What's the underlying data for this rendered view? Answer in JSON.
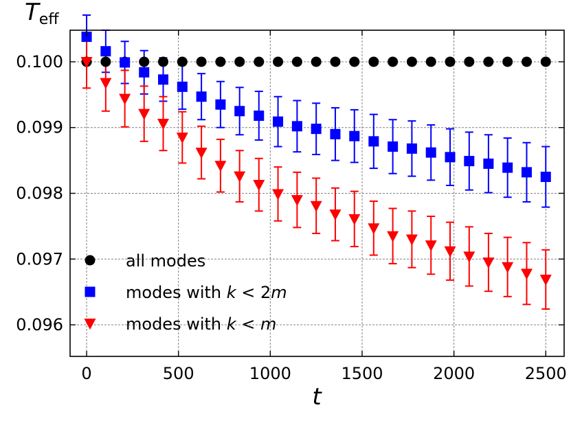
{
  "chart_data": {
    "type": "scatter",
    "title": "",
    "ylabel": {
      "main": "T",
      "sub": "eff"
    },
    "xlabel": "t",
    "xlim": [
      -90,
      2600
    ],
    "ylim": [
      0.09552,
      0.10048
    ],
    "xticks": [
      0,
      500,
      1000,
      1500,
      2000,
      2500
    ],
    "xtick_labels": [
      "0",
      "500",
      "1000",
      "1500",
      "2000",
      "2500"
    ],
    "yticks": [
      0.096,
      0.097,
      0.098,
      0.099,
      0.1
    ],
    "ytick_labels": [
      "0.096",
      "0.097",
      "0.098",
      "0.099",
      "0.100"
    ],
    "grid": true,
    "x": [
      0,
      104,
      208,
      313,
      417,
      521,
      625,
      729,
      833,
      938,
      1042,
      1146,
      1250,
      1354,
      1458,
      1563,
      1667,
      1771,
      1875,
      1979,
      2083,
      2188,
      2292,
      2396,
      2500
    ],
    "series": [
      {
        "name": "all modes",
        "marker": "circle",
        "color": "#000000",
        "values": [
          0.1,
          0.1,
          0.1,
          0.1,
          0.1,
          0.1,
          0.1,
          0.1,
          0.1,
          0.1,
          0.1,
          0.1,
          0.1,
          0.1,
          0.1,
          0.1,
          0.1,
          0.1,
          0.1,
          0.1,
          0.1,
          0.1,
          0.1,
          0.1,
          0.1
        ],
        "errors": null
      },
      {
        "name": "modes with k < 2m",
        "marker": "square",
        "color": "#0000ff",
        "values": [
          0.10038,
          0.10016,
          0.09999,
          0.09984,
          0.09973,
          0.09962,
          0.09947,
          0.09935,
          0.09925,
          0.09918,
          0.09909,
          0.09902,
          0.09898,
          0.0989,
          0.09887,
          0.09879,
          0.09871,
          0.09868,
          0.09862,
          0.09855,
          0.09849,
          0.09845,
          0.09839,
          0.09832,
          0.09825
        ],
        "errors": [
          0.00033,
          0.00032,
          0.00032,
          0.00033,
          0.00033,
          0.00034,
          0.00035,
          0.00035,
          0.00036,
          0.00037,
          0.00038,
          0.00039,
          0.00039,
          0.0004,
          0.0004,
          0.00041,
          0.00041,
          0.00042,
          0.00042,
          0.00043,
          0.00044,
          0.00044,
          0.00045,
          0.00045,
          0.00046
        ]
      },
      {
        "name": "modes with k < m",
        "marker": "triangle-down",
        "color": "#ff0000",
        "values": [
          0.1,
          0.09968,
          0.09944,
          0.09921,
          0.09906,
          0.09885,
          0.09862,
          0.09842,
          0.09826,
          0.09813,
          0.09799,
          0.0979,
          0.09781,
          0.09768,
          0.09761,
          0.09747,
          0.09735,
          0.0973,
          0.09721,
          0.09712,
          0.09704,
          0.09695,
          0.09688,
          0.09678,
          0.09669
        ],
        "errors": [
          0.0004,
          0.00043,
          0.00043,
          0.00042,
          0.00041,
          0.00039,
          0.0004,
          0.0004,
          0.00039,
          0.0004,
          0.00041,
          0.00042,
          0.00042,
          0.0004,
          0.00042,
          0.00041,
          0.00042,
          0.00043,
          0.00044,
          0.00044,
          0.00045,
          0.00044,
          0.00045,
          0.00047,
          0.00045
        ]
      }
    ],
    "legend": {
      "placement": "lower-left",
      "entries": [
        {
          "marker": "circle",
          "color": "#000000",
          "prefix": "all modes",
          "k": "",
          "op": "",
          "rhs": ""
        },
        {
          "marker": "square",
          "color": "#0000ff",
          "prefix": "modes with ",
          "k": "k",
          "op": " < 2",
          "rhs": "m"
        },
        {
          "marker": "triangle-down",
          "color": "#ff0000",
          "prefix": "modes with ",
          "k": "k",
          "op": " < ",
          "rhs": "m"
        }
      ]
    }
  }
}
